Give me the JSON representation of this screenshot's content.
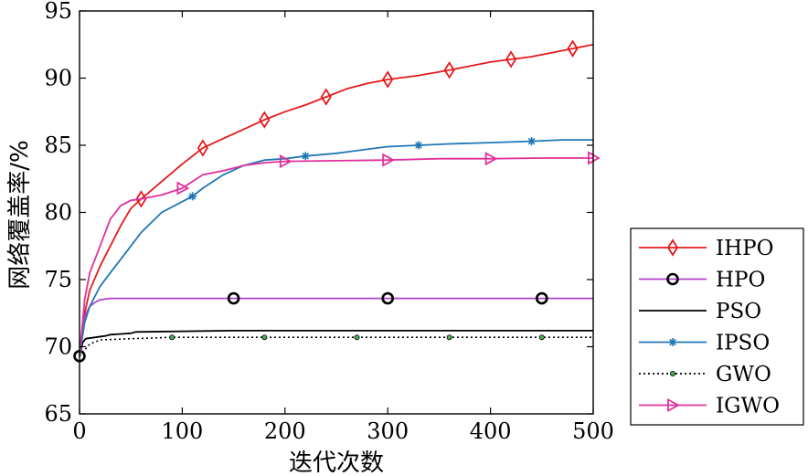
{
  "chart_data": {
    "type": "line",
    "title": "",
    "xlabel": "迭代次数",
    "ylabel": "网络覆盖率/%",
    "xlim": [
      0,
      500
    ],
    "ylim": [
      65,
      95
    ],
    "xticks": [
      0,
      100,
      200,
      300,
      400,
      500
    ],
    "yticks": [
      65,
      70,
      75,
      80,
      85,
      90,
      95
    ],
    "grid": false,
    "legend_position": "outside-right",
    "series": [
      {
        "name": "IHPO",
        "color": "#e41a1c",
        "marker": "diamond",
        "linestyle": "solid",
        "x": [
          0,
          5,
          10,
          20,
          30,
          40,
          50,
          60,
          80,
          100,
          120,
          140,
          160,
          180,
          200,
          220,
          240,
          260,
          280,
          300,
          330,
          360,
          400,
          440,
          480,
          500
        ],
        "y": [
          69.3,
          72.5,
          74.2,
          76.0,
          77.5,
          79.0,
          80.3,
          81.0,
          82.3,
          83.6,
          84.8,
          85.5,
          86.2,
          86.9,
          87.5,
          88.0,
          88.6,
          89.2,
          89.6,
          89.9,
          90.2,
          90.6,
          91.2,
          91.6,
          92.2,
          92.5
        ],
        "markers_x": [
          60,
          120,
          180,
          240,
          300,
          360,
          420,
          480
        ]
      },
      {
        "name": "HPO",
        "color": "#b041c8",
        "marker": "circle",
        "linestyle": "solid",
        "x": [
          0,
          3,
          6,
          10,
          15,
          20,
          30,
          50,
          100,
          150,
          300,
          450,
          500
        ],
        "y": [
          69.3,
          71.5,
          72.4,
          73.0,
          73.3,
          73.5,
          73.6,
          73.6,
          73.6,
          73.6,
          73.6,
          73.6,
          73.6
        ],
        "markers_x": [
          0,
          150,
          300,
          450
        ]
      },
      {
        "name": "PSO",
        "color": "#000000",
        "marker": "none",
        "linestyle": "solid",
        "x": [
          0,
          3,
          6,
          25,
          30,
          50,
          55,
          150,
          500
        ],
        "y": [
          69.3,
          70.3,
          70.6,
          70.8,
          70.9,
          71.0,
          71.1,
          71.2,
          71.2
        ],
        "markers_x": []
      },
      {
        "name": "IPSO",
        "color": "#1f77b4",
        "marker": "star",
        "linestyle": "solid",
        "x": [
          0,
          5,
          10,
          20,
          30,
          40,
          50,
          60,
          80,
          100,
          110,
          120,
          140,
          160,
          180,
          200,
          220,
          250,
          280,
          300,
          330,
          360,
          400,
          440,
          470,
          500
        ],
        "y": [
          69.3,
          71.8,
          73.0,
          74.5,
          75.5,
          76.5,
          77.5,
          78.5,
          80.0,
          80.8,
          81.2,
          81.8,
          82.8,
          83.5,
          83.9,
          84.0,
          84.2,
          84.4,
          84.7,
          84.9,
          85.0,
          85.1,
          85.2,
          85.3,
          85.4,
          85.4
        ],
        "markers_x": [
          110,
          220,
          330,
          440
        ]
      },
      {
        "name": "GWO",
        "color": "#000000",
        "marker": "dot",
        "linestyle": "dotted",
        "x": [
          0,
          10,
          20,
          50,
          90,
          500
        ],
        "y": [
          69.3,
          70.2,
          70.5,
          70.6,
          70.7,
          70.7
        ],
        "markers_x": [
          90,
          180,
          270,
          360,
          450
        ]
      },
      {
        "name": "IGWO",
        "color": "#e0309a",
        "marker": "triangle-right",
        "linestyle": "solid",
        "x": [
          0,
          5,
          10,
          20,
          30,
          40,
          50,
          60,
          80,
          100,
          120,
          140,
          160,
          180,
          200,
          250,
          300,
          350,
          400,
          450,
          500
        ],
        "y": [
          69.3,
          73.5,
          75.5,
          77.5,
          79.5,
          80.5,
          80.9,
          81.0,
          81.3,
          81.8,
          82.8,
          83.1,
          83.5,
          83.7,
          83.8,
          83.85,
          83.9,
          84.0,
          84.0,
          84.05,
          84.05
        ],
        "markers_x": [
          100,
          200,
          300,
          400,
          500
        ]
      }
    ]
  }
}
